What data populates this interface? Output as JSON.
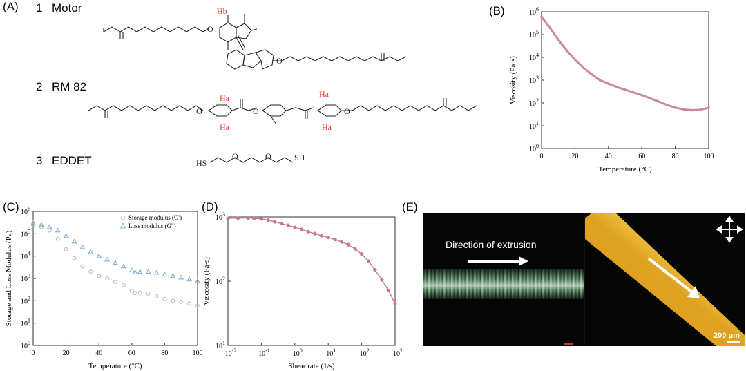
{
  "panels": {
    "a": {
      "label": "(A)",
      "compounds": [
        {
          "number": "1",
          "name": "Motor"
        },
        {
          "number": "2",
          "name": "RM 82"
        },
        {
          "number": "3",
          "name": "EDDET"
        }
      ],
      "atom_labels": {
        "hb": "Hb",
        "ha": "Ha",
        "sh": "SH",
        "hs": "HS",
        "o": "O"
      }
    },
    "b": {
      "label": "(B)"
    },
    "c": {
      "label": "(C)"
    },
    "d": {
      "label": "(D)"
    },
    "e": {
      "label": "(E)",
      "direction_text": "Direction of extrusion",
      "scale_text": "200 μm"
    }
  },
  "chart_data": [
    {
      "id": "B",
      "type": "line",
      "xlabel": "Temperature (°C)",
      "ylabel": "Viscosity (Pa·s)",
      "xlim": [
        0,
        100
      ],
      "ylim_log10": [
        0,
        6
      ],
      "y_log": true,
      "x_ticks": [
        "0",
        "20",
        "40",
        "60",
        "80",
        "100"
      ],
      "y_tick_exponents": [
        0,
        1,
        2,
        3,
        4,
        5,
        6
      ],
      "color": "#c98b98",
      "series": [
        {
          "x": [
            0,
            5,
            10,
            15,
            20,
            25,
            30,
            35,
            40,
            45,
            50,
            55,
            60,
            65,
            70,
            75,
            80,
            85,
            90,
            95,
            100
          ],
          "y": [
            600000,
            200000,
            60000,
            20000,
            8000,
            3500,
            1800,
            1000,
            700,
            500,
            380,
            290,
            220,
            160,
            115,
            82,
            62,
            52,
            48,
            50,
            62
          ]
        }
      ]
    },
    {
      "id": "C",
      "type": "scatter",
      "xlabel": "Temperature (°C)",
      "ylabel": "Storage and Loss Modulus (Pa)",
      "xlim": [
        0,
        100
      ],
      "ylim_log10": [
        0,
        6
      ],
      "y_log": true,
      "x_ticks": [
        "0",
        "20",
        "40",
        "60",
        "80",
        "100"
      ],
      "y_tick_exponents": [
        0,
        1,
        2,
        3,
        4,
        5,
        6
      ],
      "series": [
        {
          "name": "Storage modulus  (G')",
          "marker": "circle",
          "color": "#b5c7b0",
          "x": [
            0,
            5,
            10,
            15,
            20,
            25,
            30,
            35,
            40,
            45,
            50,
            55,
            60,
            62,
            65,
            70,
            75,
            80,
            85,
            90,
            95,
            100
          ],
          "y": [
            250000,
            200000,
            140000,
            60000,
            20000,
            8000,
            3500,
            2000,
            1300,
            1000,
            700,
            500,
            280,
            220,
            230,
            210,
            160,
            120,
            100,
            90,
            75,
            60
          ]
        },
        {
          "name": "Loss modulus (G\")",
          "marker": "triangle",
          "color": "#8fb0d4",
          "x": [
            0,
            5,
            10,
            15,
            20,
            25,
            30,
            35,
            40,
            45,
            50,
            55,
            60,
            62,
            65,
            70,
            75,
            80,
            85,
            90,
            95,
            100
          ],
          "y": [
            300000,
            250000,
            200000,
            140000,
            80000,
            45000,
            25000,
            15000,
            10000,
            7000,
            5000,
            3500,
            2300,
            1900,
            2000,
            2000,
            1800,
            1500,
            1300,
            1100,
            900,
            750
          ]
        }
      ]
    },
    {
      "id": "D",
      "type": "line",
      "xlabel": "Shear rate (1/s)",
      "ylabel": "Viscosity (Pa·s)",
      "x_log": true,
      "y_log": true,
      "xlim_log10": [
        -2,
        3
      ],
      "ylim_log10": [
        1,
        3
      ],
      "x_tick_exponents": [
        -2,
        -1,
        0,
        1,
        2,
        3
      ],
      "y_tick_exponents": [
        1,
        2,
        3
      ],
      "color": "#c9788a",
      "series": [
        {
          "x": [
            0.01,
            0.02,
            0.04,
            0.06,
            0.1,
            0.16,
            0.25,
            0.4,
            0.63,
            1,
            1.6,
            2.5,
            4,
            6.3,
            10,
            16,
            25,
            40,
            63,
            100,
            160,
            250,
            400,
            630,
            1000
          ],
          "y": [
            950,
            960,
            960,
            950,
            930,
            890,
            840,
            790,
            740,
            690,
            640,
            590,
            550,
            510,
            480,
            445,
            410,
            370,
            320,
            265,
            205,
            150,
            105,
            72,
            45
          ]
        }
      ]
    }
  ]
}
